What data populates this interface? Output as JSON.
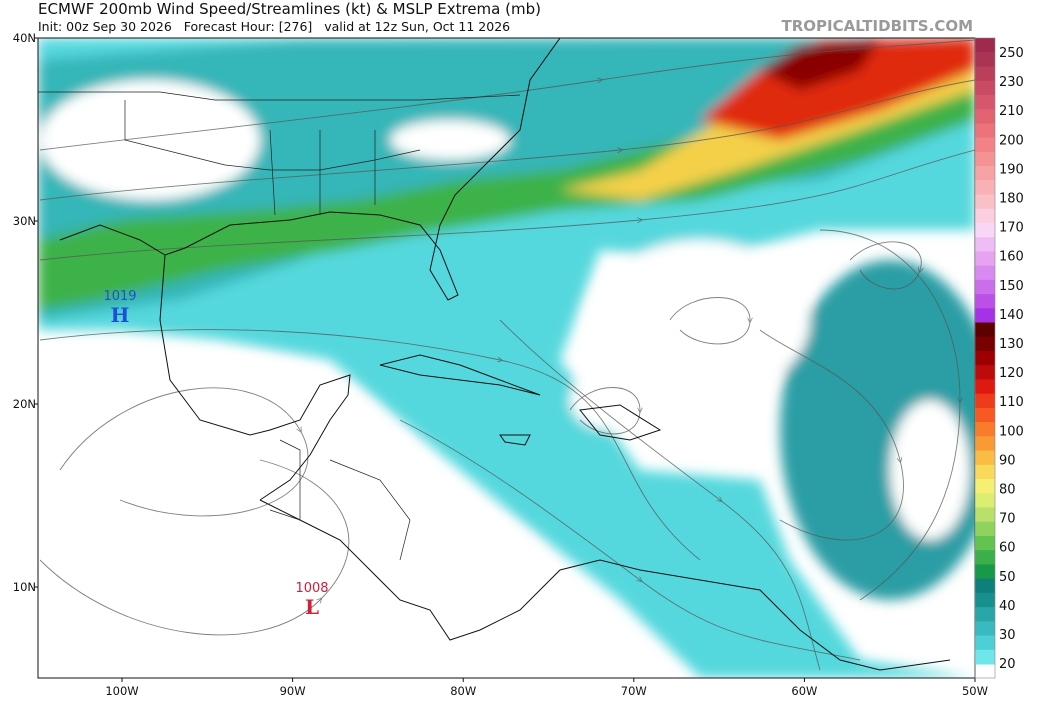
{
  "header": {
    "title": "ECMWF 200mb Wind Speed/Streamlines (kt) & MSLP Extrema (mb)",
    "subtitle": "Init: 00z Sep 30 2026   Forecast Hour: [276]   valid at 12z Sun, Oct 11 2026",
    "watermark": "TROPICALTIDBITS.COM"
  },
  "axes": {
    "lat_labels": [
      "40N",
      "30N",
      "20N",
      "10N"
    ],
    "lon_labels": [
      "100W",
      "90W",
      "80W",
      "70W",
      "60W",
      "50W"
    ]
  },
  "colorbar": {
    "labels": [
      "250",
      "230",
      "210",
      "200",
      "190",
      "180",
      "170",
      "160",
      "150",
      "140",
      "130",
      "120",
      "110",
      "100",
      "90",
      "80",
      "70",
      "60",
      "50",
      "40",
      "30",
      "20"
    ],
    "colors": [
      "#9e2a4e",
      "#aa3454",
      "#b93f5b",
      "#c84a63",
      "#d6576b",
      "#e26472",
      "#ec727b",
      "#f28286",
      "#f59394",
      "#f7a3a6",
      "#f8b2b6",
      "#f9c1c6",
      "#fbcfe0",
      "#f8d6f6",
      "#efbdf5",
      "#e6a3f2",
      "#d98af0",
      "#cb6eec",
      "#bb50e8",
      "#a532e4",
      "#5e0000",
      "#7a0000",
      "#9c0000",
      "#bd0a0a",
      "#de1a10",
      "#ee3c1a",
      "#f65a22",
      "#f97c2c",
      "#f99b35",
      "#f9bd45",
      "#f9d95a",
      "#f6ef74",
      "#dbee72",
      "#b9e06a",
      "#8fd35e",
      "#62c350",
      "#3bb04a",
      "#18994a",
      "#0f7f7c",
      "#17918f",
      "#2aa6a8",
      "#39bac0",
      "#4ccfd6",
      "#6fe6ea"
    ]
  },
  "pressure_centers": [
    {
      "value": "1019",
      "letter": "H",
      "color": "#1f4fd6"
    },
    {
      "value": "1008",
      "letter": "L",
      "color": "#d0213a"
    }
  ]
}
